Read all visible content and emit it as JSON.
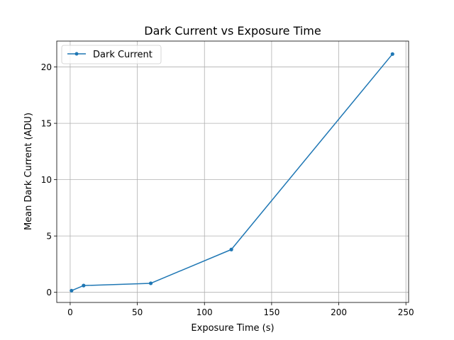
{
  "chart_data": {
    "type": "line",
    "title": "Dark Current vs Exposure Time",
    "xlabel": "Exposure Time (s)",
    "ylabel": "Mean Dark Current (ADU)",
    "xlim": [
      -10,
      252
    ],
    "ylim": [
      -0.9,
      22.3
    ],
    "xticks": [
      0,
      50,
      100,
      150,
      200,
      250
    ],
    "yticks": [
      0,
      5,
      10,
      15,
      20
    ],
    "grid": true,
    "legend_position": "top-left",
    "series": [
      {
        "name": "Dark Current",
        "color": "#1f77b4",
        "marker": "circle",
        "x": [
          1,
          10,
          60,
          120,
          240
        ],
        "y": [
          0.15,
          0.6,
          0.8,
          3.8,
          21.15
        ]
      }
    ]
  }
}
